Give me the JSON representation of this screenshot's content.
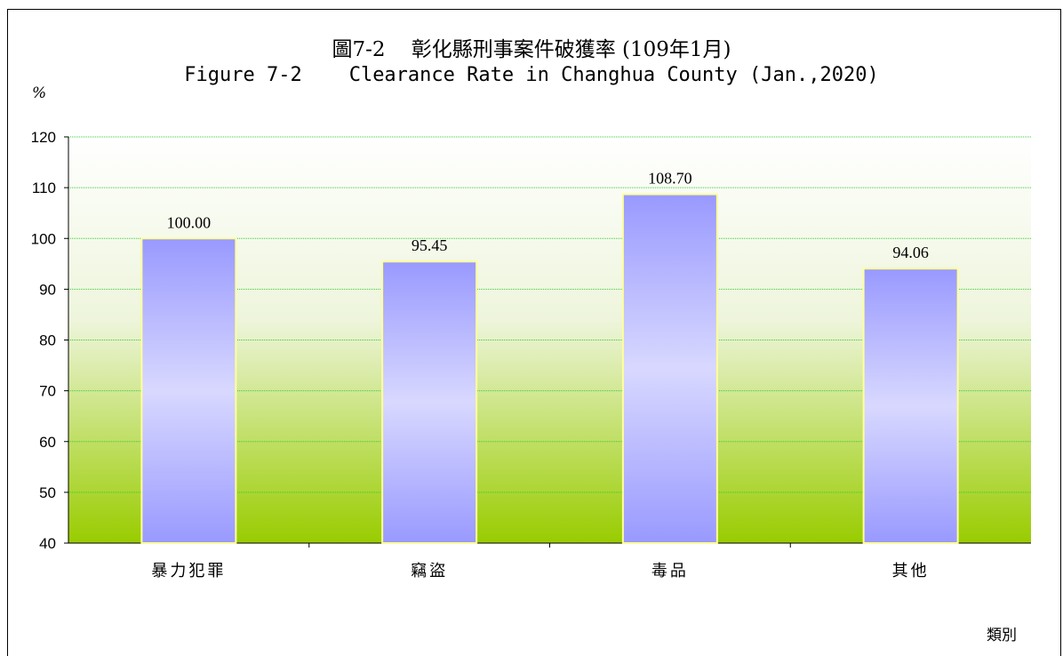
{
  "title_zh": "圖7-2    彰化縣刑事案件破獲率 (109年1月)",
  "title_en": "Figure 7-2    Clearance Rate in Changhua County (Jan.,2020)",
  "y_unit": "%",
  "x_axis_title": "類別",
  "colors": {
    "bar_outer": "#9999ff",
    "bar_inner": "#d8d8ff",
    "bar_border": "#ffff99",
    "plot_top": "#ffffff",
    "plot_bottom": "#99cc00",
    "grid": "#33cc33"
  },
  "chart_data": {
    "type": "bar",
    "categories": [
      "暴力犯罪",
      "竊盜",
      "毒品",
      "其他"
    ],
    "values": [
      100.0,
      95.45,
      108.7,
      94.06
    ],
    "data_labels": [
      "100.00",
      "95.45",
      "108.70",
      "94.06"
    ],
    "yticks": [
      "40",
      "50",
      "60",
      "70",
      "80",
      "90",
      "100",
      "110",
      "120"
    ],
    "ylim": [
      40,
      120
    ],
    "grid": true,
    "legend": "none"
  }
}
